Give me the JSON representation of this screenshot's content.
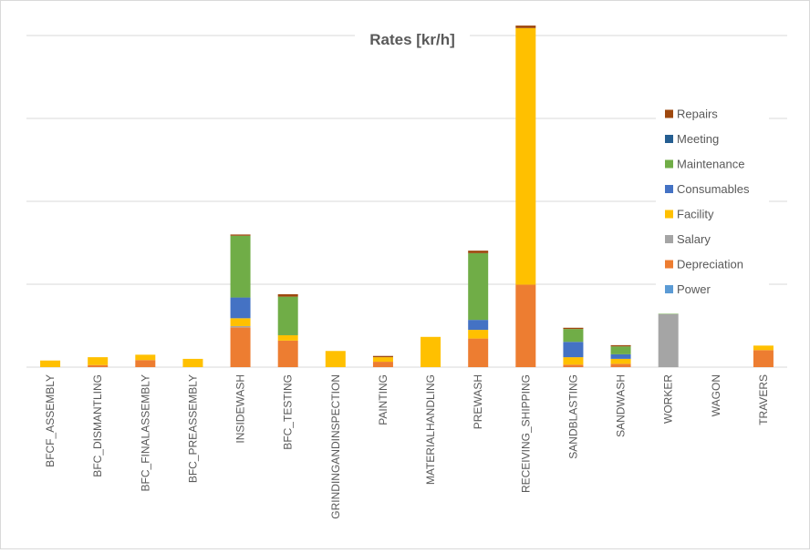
{
  "chart_data": {
    "type": "bar",
    "stacked": true,
    "title": "Rates [kr/h]",
    "xlabel": "",
    "ylabel": "",
    "grid": true,
    "legend_position": "right",
    "categories": [
      "BFCF_ASSEMBLY",
      "BFC_DISMANTLING",
      "BFC_FINALASSEMBLY",
      "BFC_PREASSEMBLY",
      "INSIDEWASH",
      "BFC_TESTING",
      "GRINDINGANDINSPECTION",
      "PAINTING",
      "MATERIALHANDLING",
      "PREWASH",
      "RECEIVING_SHIPPING",
      "SANDBLASTING",
      "SANDWASH",
      "WORKER",
      "WAGON",
      "TRAVERS"
    ],
    "series": [
      {
        "name": "Power",
        "color": "#5b9bd5",
        "values": [
          0,
          0,
          0,
          0,
          0,
          0,
          0,
          0,
          0,
          0,
          0,
          0,
          0,
          0,
          0,
          0
        ]
      },
      {
        "name": "Depreciation",
        "color": "#ed7d31",
        "values": [
          0,
          0.5,
          1.7,
          0,
          9.6,
          6.4,
          0,
          1.3,
          0,
          6.9,
          19.9,
          0.6,
          0.8,
          0,
          0,
          4.1
        ]
      },
      {
        "name": "Salary",
        "color": "#a5a5a5",
        "values": [
          0,
          0,
          0,
          0,
          0.3,
          0,
          0,
          0,
          0,
          0,
          0,
          0,
          0,
          12.8,
          0,
          0
        ]
      },
      {
        "name": "Facility",
        "color": "#ffc000",
        "values": [
          1.6,
          1.9,
          1.3,
          2.0,
          1.9,
          1.3,
          3.9,
          1.1,
          7.3,
          2.1,
          61.9,
          1.8,
          1.2,
          0,
          0,
          1.1
        ]
      },
      {
        "name": "Consumables",
        "color": "#4472c4",
        "values": [
          0,
          0,
          0,
          0,
          5.0,
          0,
          0,
          0,
          0,
          2.4,
          0,
          3.7,
          1.1,
          0,
          0,
          0
        ]
      },
      {
        "name": "Maintenance",
        "color": "#70ad47",
        "values": [
          0,
          0,
          0,
          0,
          14.9,
          9.3,
          0,
          0,
          0,
          16.1,
          0,
          3.1,
          1.9,
          0.1,
          0,
          0
        ]
      },
      {
        "name": "Meeting",
        "color": "#255e91",
        "values": [
          0,
          0,
          0,
          0,
          0,
          0,
          0,
          0,
          0,
          0,
          0,
          0,
          0,
          0,
          0,
          0
        ]
      },
      {
        "name": "Repairs",
        "color": "#9e480e",
        "values": [
          0,
          0,
          0,
          0,
          0.3,
          0.6,
          0,
          0.3,
          0,
          0.6,
          0.6,
          0.3,
          0.3,
          0,
          0,
          0
        ]
      }
    ],
    "legend_order": [
      "Repairs",
      "Meeting",
      "Maintenance",
      "Consumables",
      "Facility",
      "Salary",
      "Depreciation",
      "Power"
    ],
    "gridline_color": "#d9d9d9",
    "ylim": [
      0,
      80
    ],
    "y_gridlines": [
      0,
      20,
      40,
      60,
      80
    ]
  }
}
